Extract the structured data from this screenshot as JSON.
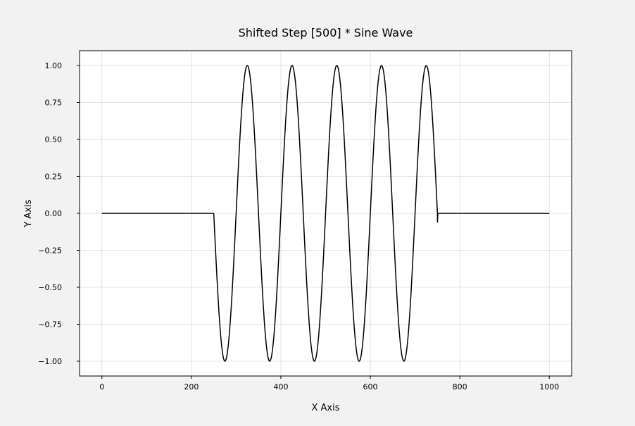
{
  "chart_data": {
    "type": "line",
    "title": "Shifted Step [500] * Sine Wave",
    "xlabel": "X Axis",
    "ylabel": "Y Axis",
    "xlim": [
      -50,
      1050
    ],
    "ylim": [
      -1.1,
      1.1
    ],
    "xticks": [
      0,
      200,
      400,
      600,
      800,
      1000
    ],
    "xtick_labels": [
      "0",
      "200",
      "400",
      "600",
      "800",
      "1000"
    ],
    "yticks": [
      1.0,
      0.75,
      0.5,
      0.25,
      0.0,
      -0.25,
      -0.5,
      -0.75,
      -1.0
    ],
    "ytick_labels": [
      "1.00",
      "0.75",
      "0.50",
      "0.25",
      "0.00",
      "−0.25",
      "−0.50",
      "−0.75",
      "−1.00"
    ],
    "grid": true,
    "legend": false,
    "series": [
      {
        "color": "#000000",
        "step_start": 250,
        "step_end": 750,
        "period": 100,
        "amplitude": 1,
        "x_range": [
          0,
          1000
        ],
        "function": "y = -sin(2*pi*(x-250)/100) for 250 <= x <= 750, else 0"
      }
    ]
  }
}
